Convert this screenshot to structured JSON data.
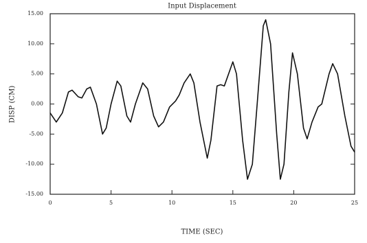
{
  "chart_data": {
    "type": "line",
    "title": "Input Displacement",
    "x_label": "TIME (SEC)",
    "y_label": "DISP (CM)",
    "x": [
      0,
      0.5,
      1,
      1.5,
      1.8,
      2.3,
      2.6,
      3,
      3.3,
      3.8,
      4.3,
      4.6,
      5.0,
      5.5,
      5.8,
      6.3,
      6.6,
      7.0,
      7.6,
      8.0,
      8.5,
      8.9,
      9.3,
      9.8,
      10.3,
      10.6,
      11.0,
      11.5,
      11.8,
      12.3,
      12.9,
      13.2,
      13.7,
      14.0,
      14.3,
      15.0,
      15.3,
      15.8,
      16.2,
      16.6,
      17.0,
      17.5,
      17.7,
      18.1,
      18.6,
      18.9,
      19.2,
      19.6,
      19.9,
      20.3,
      20.8,
      21.1,
      21.5,
      22.0,
      22.3,
      22.9,
      23.2,
      23.6,
      24.2,
      24.7,
      25
    ],
    "series": [
      {
        "name": "Input Displacement",
        "color": "#111111",
        "values": [
          -1.5,
          -3,
          -1.5,
          2,
          2.3,
          1.2,
          1,
          2.5,
          2.8,
          0,
          -5,
          -4,
          0,
          3.8,
          3,
          -2,
          -3,
          0,
          3.5,
          2.5,
          -2,
          -3.8,
          -3,
          -0.5,
          0.5,
          1.5,
          3.5,
          5,
          3.5,
          -3,
          -9,
          -6,
          3,
          3.2,
          3,
          7,
          5,
          -6,
          -12.5,
          -10,
          0,
          13,
          14,
          10,
          -5,
          -12.5,
          -10,
          2,
          8.5,
          5,
          -4,
          -5.8,
          -3,
          -0.5,
          0,
          5,
          6.7,
          5,
          -2,
          -7,
          -8
        ]
      }
    ],
    "xlim": [
      0,
      25
    ],
    "xticks": [
      0,
      5,
      10,
      15,
      20,
      25
    ],
    "ylim": [
      -15,
      15
    ],
    "yticks": [
      {
        "value": -15,
        "label": "-15.00"
      },
      {
        "value": -10,
        "label": "-10.00"
      },
      {
        "value": -5,
        "label": "-5.00"
      },
      {
        "value": 0,
        "label": "0.00"
      },
      {
        "value": 5,
        "label": "5.00"
      },
      {
        "value": 10,
        "label": "10.00"
      },
      {
        "value": 15,
        "label": "15.00"
      }
    ]
  }
}
